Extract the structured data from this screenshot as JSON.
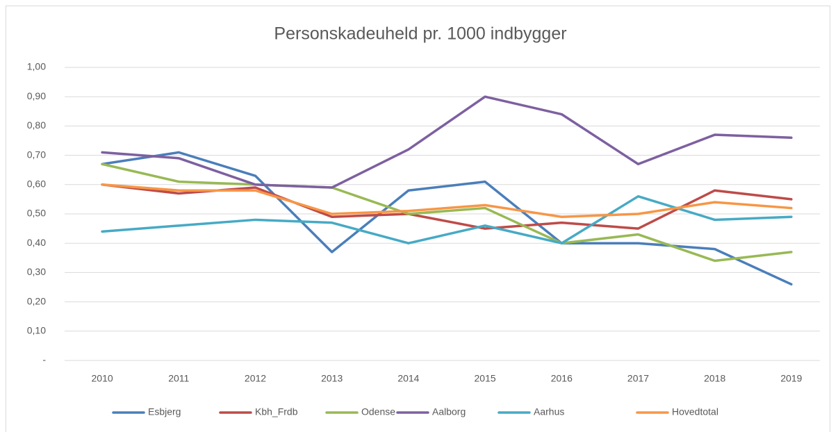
{
  "chart_data": {
    "type": "line",
    "title": "Personskadeuheld pr. 1000 indbygger",
    "categories": [
      "2010",
      "2011",
      "2012",
      "2013",
      "2014",
      "2015",
      "2016",
      "2017",
      "2018",
      "2019"
    ],
    "series": [
      {
        "name": "Esbjerg",
        "color": "#4a7ebb",
        "values": [
          0.67,
          0.71,
          0.63,
          0.37,
          0.58,
          0.61,
          0.4,
          0.4,
          0.38,
          0.26
        ]
      },
      {
        "name": "Kbh_Frdb",
        "color": "#be4b48",
        "values": [
          0.6,
          0.57,
          0.59,
          0.49,
          0.5,
          0.45,
          0.47,
          0.45,
          0.58,
          0.55
        ]
      },
      {
        "name": "Odense",
        "color": "#98b954",
        "values": [
          0.67,
          0.61,
          0.6,
          0.59,
          0.5,
          0.52,
          0.4,
          0.43,
          0.34,
          0.37
        ]
      },
      {
        "name": "Aalborg",
        "color": "#7d60a0",
        "values": [
          0.71,
          0.69,
          0.6,
          0.59,
          0.72,
          0.9,
          0.84,
          0.67,
          0.77,
          0.76
        ]
      },
      {
        "name": "Aarhus",
        "color": "#46aac5",
        "values": [
          0.44,
          0.46,
          0.48,
          0.47,
          0.4,
          0.46,
          0.4,
          0.56,
          0.48,
          0.49
        ]
      },
      {
        "name": "Hovedtotal",
        "color": "#f79646",
        "values": [
          0.6,
          0.58,
          0.58,
          0.5,
          0.51,
          0.53,
          0.49,
          0.5,
          0.54,
          0.52
        ]
      }
    ],
    "ylim": [
      0,
      1
    ],
    "yticks": [
      {
        "value": 0,
        "label": "-"
      },
      {
        "value": 0.1,
        "label": "0,10"
      },
      {
        "value": 0.2,
        "label": "0,20"
      },
      {
        "value": 0.3,
        "label": "0,30"
      },
      {
        "value": 0.4,
        "label": "0,40"
      },
      {
        "value": 0.5,
        "label": "0,50"
      },
      {
        "value": 0.6,
        "label": "0,60"
      },
      {
        "value": 0.7,
        "label": "0,70"
      },
      {
        "value": 0.8,
        "label": "0,80"
      },
      {
        "value": 0.9,
        "label": "0,90"
      },
      {
        "value": 1,
        "label": "1,00"
      }
    ],
    "grid": true,
    "legend": "bottom"
  }
}
